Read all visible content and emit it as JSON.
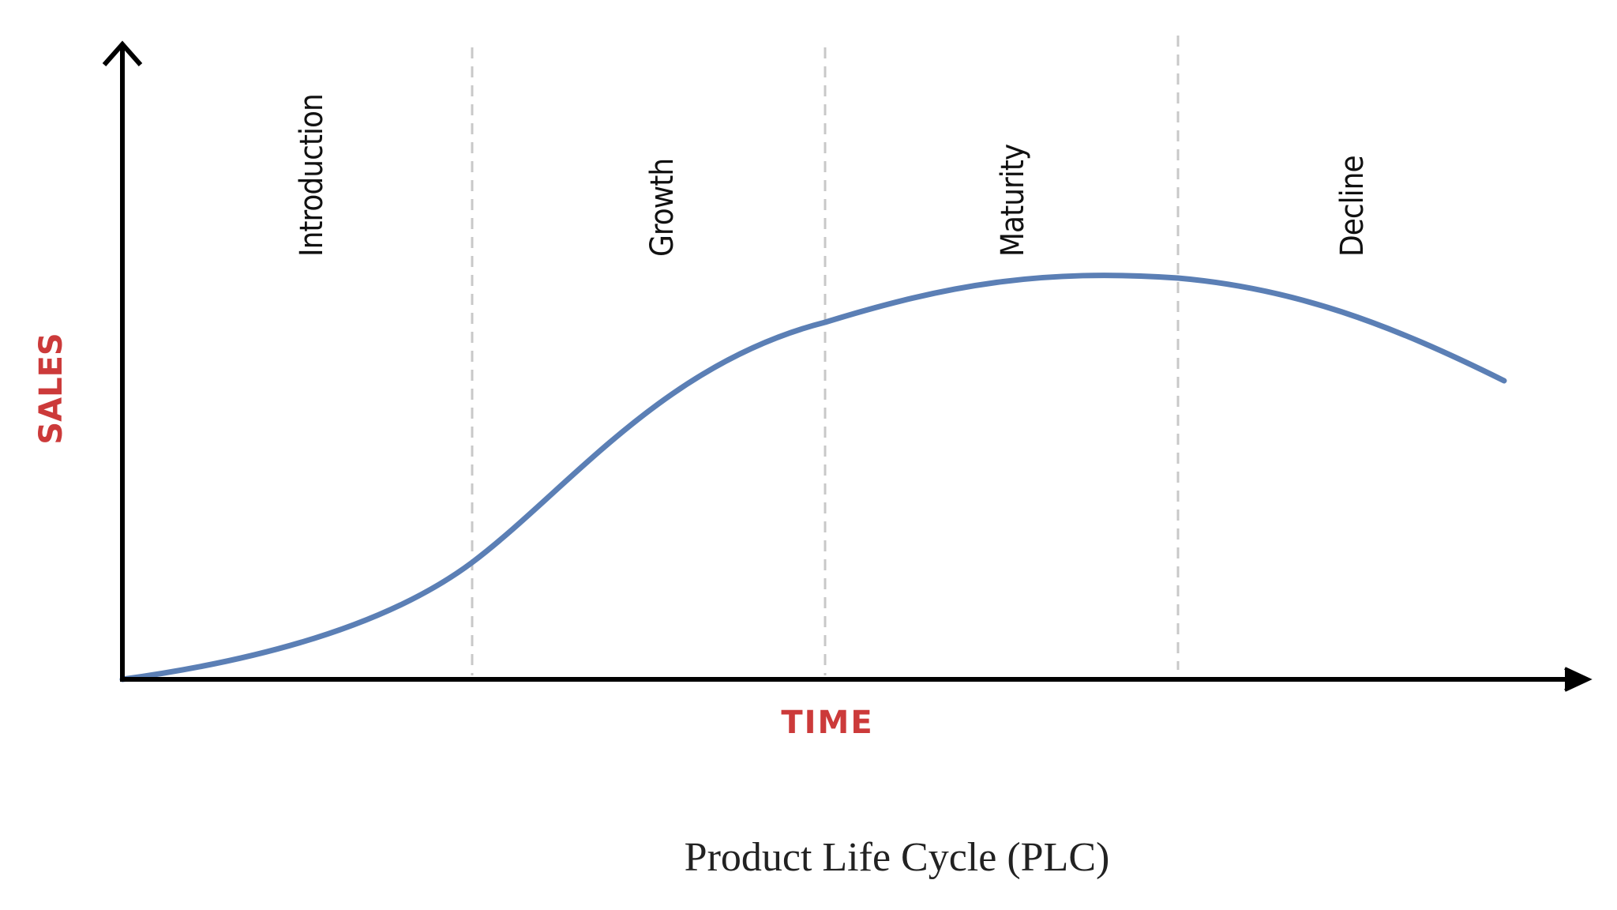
{
  "diagram": {
    "stages": [
      "Introduction",
      "Growth",
      "Maturity",
      "Decline"
    ],
    "y_axis_label": "SALES",
    "x_axis_label": "TIME",
    "caption": "Product Life Cycle (PLC)",
    "colors": {
      "curve": "#5b7fb5",
      "axis": "#000000",
      "axis_label": "#cc3a3a",
      "divider": "#c8c8c8",
      "stage_text": "#111111",
      "caption_text": "#222222"
    }
  }
}
